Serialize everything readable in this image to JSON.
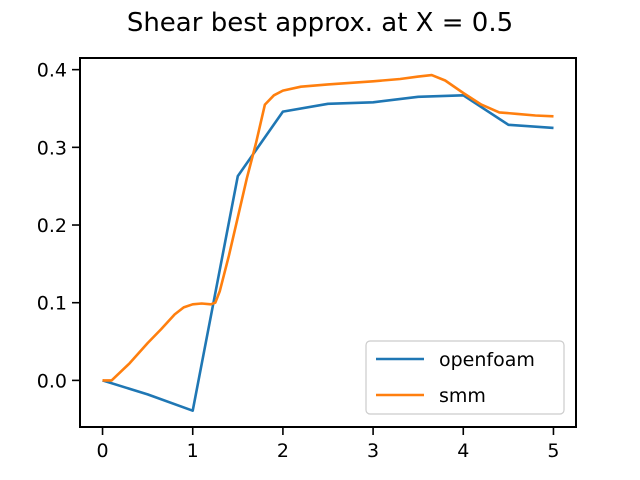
{
  "chart_data": {
    "type": "line",
    "title": "Shear best approx. at X = 0.5",
    "xlabel": "",
    "ylabel": "",
    "xlim": [
      -0.25,
      5.25
    ],
    "ylim": [
      -0.06,
      0.415
    ],
    "xticks": [
      0,
      1,
      2,
      3,
      4,
      5
    ],
    "xtick_labels": [
      "0",
      "1",
      "2",
      "3",
      "4",
      "5"
    ],
    "yticks": [
      0.0,
      0.1,
      0.2,
      0.3,
      0.4
    ],
    "ytick_labels": [
      "0.0",
      "0.1",
      "0.2",
      "0.3",
      "0.4"
    ],
    "grid": false,
    "legend_position": "lower-right",
    "series": [
      {
        "name": "openfoam",
        "color": "#1f77b4",
        "x": [
          0,
          0.5,
          1.0,
          1.5,
          2.0,
          2.5,
          3.0,
          3.5,
          4.0,
          4.5,
          5.0
        ],
        "y": [
          0.0,
          -0.018,
          -0.039,
          0.263,
          0.346,
          0.356,
          0.358,
          0.365,
          0.367,
          0.329,
          0.325
        ]
      },
      {
        "name": "smm",
        "color": "#ff7f0e",
        "x": [
          0,
          0.1,
          0.3,
          0.5,
          0.65,
          0.8,
          0.9,
          1.0,
          1.1,
          1.2,
          1.25,
          1.3,
          1.4,
          1.5,
          1.6,
          1.7,
          1.8,
          1.9,
          2.0,
          2.2,
          2.5,
          3.0,
          3.3,
          3.5,
          3.65,
          3.8,
          4.0,
          4.2,
          4.4,
          4.6,
          4.8,
          5.0
        ],
        "y": [
          0.0,
          0.0,
          0.022,
          0.048,
          0.066,
          0.085,
          0.094,
          0.098,
          0.099,
          0.098,
          0.1,
          0.115,
          0.16,
          0.21,
          0.26,
          0.305,
          0.355,
          0.367,
          0.373,
          0.378,
          0.381,
          0.385,
          0.388,
          0.391,
          0.393,
          0.386,
          0.37,
          0.355,
          0.345,
          0.343,
          0.341,
          0.34
        ]
      }
    ]
  }
}
